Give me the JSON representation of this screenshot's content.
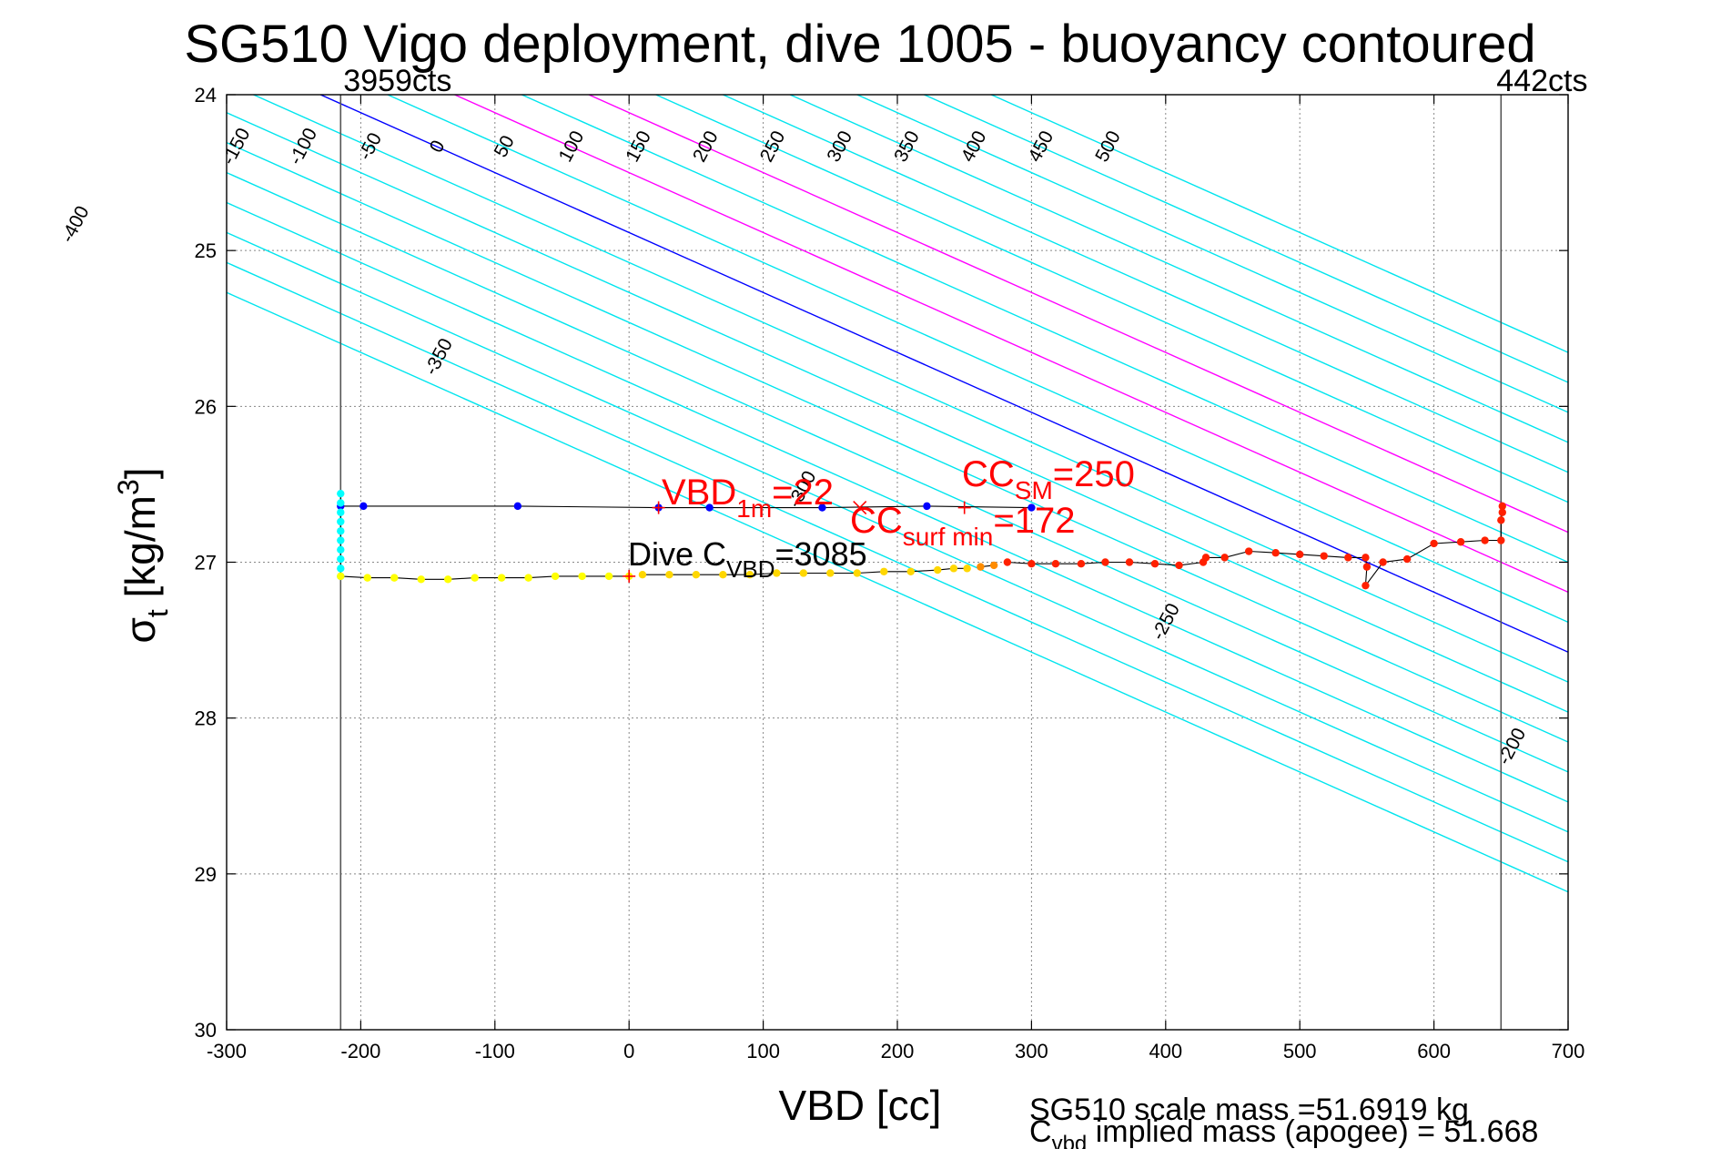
{
  "chart_data": {
    "type": "scatter",
    "title": "SG510 Vigo deployment, dive 1005 - buoyancy contoured",
    "xlabel": "VBD [cc]",
    "ylabel_main": "σ",
    "ylabel_sub": "t",
    "ylabel_rest": " [kg/m",
    "ylabel_sup": "3",
    "ylabel_close": "]",
    "xlim": [
      -300,
      700
    ],
    "ylim": [
      24,
      30
    ],
    "y_reversed": true,
    "grid": true,
    "x_ticks": [
      -300,
      -200,
      -100,
      0,
      100,
      200,
      300,
      400,
      500,
      600,
      700
    ],
    "x_tick_labels": [
      "-300",
      "-200",
      "-100",
      "0",
      "100",
      "200",
      "300",
      "400",
      "500",
      "600",
      "700"
    ],
    "y_ticks": [
      24,
      25,
      26,
      27,
      28,
      29,
      30
    ],
    "y_tick_labels": [
      "24",
      "25",
      "26",
      "27",
      "28",
      "29",
      "30"
    ],
    "contours": {
      "levels": [
        -400,
        -350,
        -300,
        -250,
        -200,
        -150,
        -100,
        -50,
        0,
        50,
        100,
        150,
        200,
        250,
        300,
        350,
        400,
        450,
        500
      ],
      "x_at_top": [
        -630,
        -580,
        -530,
        -480,
        -430,
        -380,
        -330,
        -280,
        -230,
        -180,
        -130,
        -80,
        -30,
        20,
        70,
        120,
        170,
        220,
        270
      ],
      "top_labels": [
        "-150",
        "-100",
        "-50",
        "0",
        "50",
        "100",
        "150",
        "200",
        "250",
        "300",
        "350",
        "400",
        "450",
        "500"
      ],
      "top_label_levels": [
        -150,
        -100,
        -50,
        0,
        50,
        100,
        150,
        200,
        250,
        300,
        350,
        400,
        450,
        500
      ],
      "left_labels": [
        "-400",
        "-350",
        "-300",
        "-250",
        "-200"
      ],
      "left_label_levels": [
        -400,
        -350,
        -300,
        -250,
        -200
      ],
      "bottom_labels": [
        "-150",
        "-100",
        "-50",
        "0",
        "50",
        "100",
        "150",
        "200",
        "250",
        "300",
        "350",
        "400",
        "450",
        "500"
      ],
      "bottom_label_levels": [
        -150,
        -100,
        -50,
        0,
        50,
        100,
        150,
        200,
        250,
        300,
        350,
        400,
        450,
        500
      ],
      "zero_color": "#0000ff",
      "highlight_color": "#ff00ff",
      "highlight_levels": [
        100,
        200
      ],
      "color": "#00e5ee"
    },
    "vertical_limits": [
      {
        "x": -215,
        "label": "3959cts"
      },
      {
        "x": 650,
        "label": "442cts"
      }
    ],
    "series": [
      {
        "color": "#0000ff",
        "points": [
          [
            -215,
            26.64
          ],
          [
            -198,
            26.64
          ],
          [
            -83,
            26.64
          ],
          [
            22,
            26.65
          ],
          [
            60,
            26.65
          ],
          [
            144,
            26.65
          ],
          [
            222,
            26.64
          ],
          [
            300,
            26.65
          ]
        ]
      },
      {
        "color": "#00ffff",
        "points": [
          [
            -215,
            26.56
          ],
          [
            -215,
            26.62
          ],
          [
            -215,
            26.68
          ],
          [
            -215,
            26.74
          ],
          [
            -215,
            26.8
          ],
          [
            -215,
            26.86
          ],
          [
            -215,
            26.92
          ],
          [
            -215,
            26.98
          ],
          [
            -215,
            27.04
          ],
          [
            -215,
            27.09
          ]
        ]
      },
      {
        "color": "#ffff00",
        "points": [
          [
            -215,
            27.09
          ],
          [
            -195,
            27.1
          ],
          [
            -175,
            27.1
          ],
          [
            -155,
            27.11
          ],
          [
            -135,
            27.11
          ],
          [
            -115,
            27.1
          ],
          [
            -95,
            27.1
          ],
          [
            -75,
            27.1
          ],
          [
            -55,
            27.09
          ],
          [
            -35,
            27.09
          ],
          [
            -15,
            27.09
          ],
          [
            0,
            27.09
          ]
        ]
      },
      {
        "color": "#ffd700",
        "points": [
          [
            10,
            27.08
          ],
          [
            30,
            27.08
          ],
          [
            50,
            27.08
          ],
          [
            70,
            27.08
          ],
          [
            90,
            27.08
          ],
          [
            110,
            27.07
          ],
          [
            130,
            27.07
          ],
          [
            150,
            27.07
          ],
          [
            170,
            27.07
          ],
          [
            190,
            27.06
          ],
          [
            210,
            27.06
          ],
          [
            230,
            27.05
          ],
          [
            242,
            27.04
          ],
          [
            252,
            27.04
          ]
        ]
      },
      {
        "color": "#ff8c00",
        "points": [
          [
            262,
            27.03
          ],
          [
            272,
            27.02
          ]
        ]
      },
      {
        "color": "#ff2000",
        "points": [
          [
            282,
            27.0
          ],
          [
            300,
            27.01
          ],
          [
            318,
            27.01
          ],
          [
            337,
            27.01
          ],
          [
            355,
            27.0
          ],
          [
            373,
            27.0
          ],
          [
            392,
            27.01
          ],
          [
            410,
            27.02
          ],
          [
            428,
            27.0
          ],
          [
            430,
            26.97
          ],
          [
            444,
            26.97
          ],
          [
            462,
            26.93
          ],
          [
            482,
            26.94
          ],
          [
            500,
            26.95
          ],
          [
            518,
            26.96
          ],
          [
            536,
            26.97
          ],
          [
            549,
            26.97
          ],
          [
            550,
            27.03
          ],
          [
            549,
            27.15
          ],
          [
            562,
            27.0
          ],
          [
            580,
            26.98
          ],
          [
            600,
            26.88
          ],
          [
            620,
            26.87
          ],
          [
            638,
            26.86
          ],
          [
            650,
            26.86
          ],
          [
            650,
            26.73
          ],
          [
            651,
            26.68
          ],
          [
            651,
            26.64
          ]
        ]
      }
    ],
    "markers": [
      {
        "type": "+",
        "x": 22,
        "y": 26.65,
        "color": "#ff0000"
      },
      {
        "type": "x",
        "x": 172,
        "y": 26.65,
        "color": "#ff0000"
      },
      {
        "type": "+",
        "x": 250,
        "y": 26.65,
        "color": "#ff0000"
      },
      {
        "type": "+",
        "x": 0,
        "y": 27.09,
        "color": "#ff0000"
      }
    ],
    "annotations": {
      "vbd_main": "VBD",
      "vbd_sub": "1m",
      "vbd_val": "=22",
      "ccsm_main": "CC",
      "ccsm_sub": "SM",
      "ccsm_val": "=250",
      "ccsurf_main": "CC",
      "ccsurf_sub": "surf min",
      "ccsurf_val": "=172",
      "dive_main": "Dive C",
      "dive_sub": "VBD",
      "dive_val": "=3085"
    },
    "footer": {
      "line1": "SG510 scale mass =51.6919 kg",
      "line2_main": "C",
      "line2_sub": "vbd",
      "line2_rest": " implied mass (apogee) = 51.668"
    }
  }
}
